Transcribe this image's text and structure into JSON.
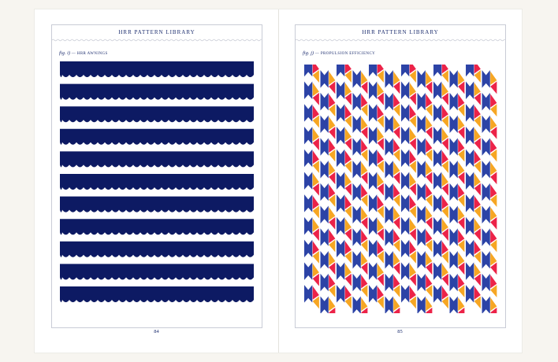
{
  "book": {
    "running_head": "HRR PATTERN LIBRARY"
  },
  "left_page": {
    "figure_label": "fig. i)",
    "figure_title": "HRR AWNINGS",
    "page_number": "84",
    "pattern": {
      "name": "awnings",
      "stripe_count": 11,
      "colors": {
        "navy": "#0d1a63"
      }
    }
  },
  "right_page": {
    "figure_label": "fig. j)",
    "figure_title": "PROPULSION EFFICIENCY",
    "page_number": "85",
    "pattern": {
      "name": "propulsion-efficiency",
      "colors": {
        "blue": "#2c43a6",
        "red": "#ec2348",
        "orange": "#f6a623"
      }
    }
  },
  "colors": {
    "ink": "#1c2d6e",
    "frame": "#c9ccd6",
    "paper": "#ffffff"
  }
}
